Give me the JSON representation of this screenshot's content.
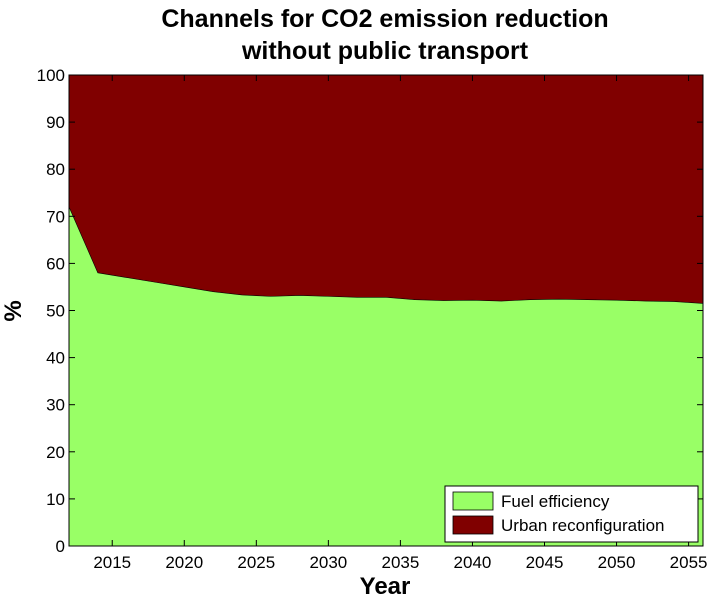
{
  "chart_data": {
    "type": "area",
    "stacked": true,
    "percent_stacked": true,
    "title": [
      "Channels for CO2 emission reduction",
      "without public transport"
    ],
    "xlabel": "Year",
    "ylabel": "%",
    "xlim": [
      2012,
      2056
    ],
    "ylim": [
      0,
      100
    ],
    "xticks": [
      2015,
      2020,
      2025,
      2030,
      2035,
      2040,
      2045,
      2050,
      2055
    ],
    "yticks": [
      0,
      10,
      20,
      30,
      40,
      50,
      60,
      70,
      80,
      90,
      100
    ],
    "grid": false,
    "legend_position": "bottom-right",
    "x": [
      2012,
      2014,
      2016,
      2018,
      2020,
      2022,
      2024,
      2026,
      2028,
      2030,
      2032,
      2034,
      2036,
      2038,
      2040,
      2042,
      2044,
      2046,
      2048,
      2050,
      2052,
      2054,
      2056
    ],
    "series": [
      {
        "name": "Fuel efficiency",
        "color": "#99ff66",
        "values": [
          72,
          58,
          57,
          56,
          55,
          54,
          53.3,
          53,
          53.2,
          53,
          52.8,
          52.8,
          52.3,
          52.1,
          52.2,
          52,
          52.3,
          52.4,
          52.3,
          52.2,
          52,
          51.9,
          51.5
        ]
      },
      {
        "name": "Urban reconfiguration",
        "color": "#800000",
        "values": [
          28,
          42,
          43,
          44,
          45,
          46,
          46.7,
          47,
          46.8,
          47,
          47.2,
          47.2,
          47.7,
          47.9,
          47.8,
          48,
          47.7,
          47.6,
          47.7,
          47.8,
          48,
          48.1,
          48.5
        ]
      }
    ]
  }
}
